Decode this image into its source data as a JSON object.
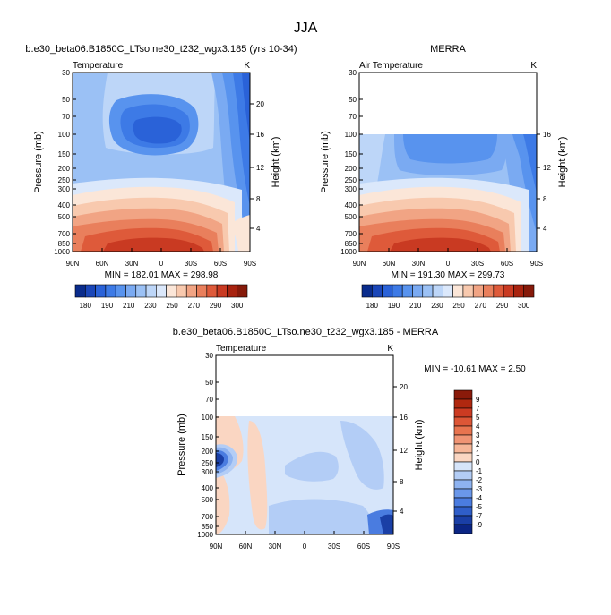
{
  "page_title": "JJA",
  "chart_data": [
    {
      "id": "model",
      "type": "contour",
      "title": "b.e30_beta06.B1850C_LTso.ne30_t232_wgx3.185 (yrs 10-34)",
      "field_label": "Temperature",
      "units": "K",
      "xlabel": "",
      "ylabel": "Pressure (mb)",
      "y2label": "Height (km)",
      "x_ticks": [
        "90N",
        "60N",
        "30N",
        "0",
        "30S",
        "60S",
        "90S"
      ],
      "y_ticks": [
        "30",
        "50",
        "70",
        "100",
        "150",
        "200",
        "250",
        "300",
        "400",
        "500",
        "700",
        "850",
        "1000"
      ],
      "y2_ticks": [
        "20",
        "16",
        "12",
        "8",
        "4"
      ],
      "min_max": "MIN = 182.01   MAX = 298.98",
      "pressure_range_mb": [
        30,
        1000
      ]
    },
    {
      "id": "obs",
      "type": "contour",
      "title": "MERRA",
      "field_label": "Air Temperature",
      "units": "K",
      "xlabel": "",
      "ylabel": "Pressure (mb)",
      "y2label": "Height (km)",
      "x_ticks": [
        "90N",
        "60N",
        "30N",
        "0",
        "30S",
        "60S",
        "90S"
      ],
      "y_ticks": [
        "30",
        "50",
        "70",
        "100",
        "150",
        "200",
        "250",
        "300",
        "400",
        "500",
        "700",
        "850",
        "1000"
      ],
      "y2_ticks": [
        "16",
        "12",
        "8",
        "4"
      ],
      "min_max": "MIN = 191.30   MAX = 299.73",
      "pressure_range_mb": [
        100,
        1000
      ]
    },
    {
      "id": "diff",
      "type": "contour",
      "title": "b.e30_beta06.B1850C_LTso.ne30_t232_wgx3.185 - MERRA",
      "field_label": "Temperature",
      "units": "K",
      "xlabel": "",
      "ylabel": "Pressure (mb)",
      "y2label": "Height (km)",
      "x_ticks": [
        "90N",
        "60N",
        "30N",
        "0",
        "30S",
        "60S",
        "90S"
      ],
      "y_ticks": [
        "30",
        "50",
        "70",
        "100",
        "150",
        "200",
        "250",
        "300",
        "400",
        "500",
        "700",
        "850",
        "1000"
      ],
      "y2_ticks": [
        "20",
        "16",
        "12",
        "8",
        "4"
      ],
      "min_max": "MIN = -10.61   MAX =   2.50",
      "pressure_range_mb": [
        100,
        1000
      ]
    }
  ],
  "colorbar_temperature": {
    "labels": [
      "180",
      "190",
      "210",
      "230",
      "250",
      "270",
      "290",
      "300"
    ],
    "colors": [
      "#0a2c8c",
      "#1a46b8",
      "#2a62d8",
      "#3d7ae6",
      "#5893ee",
      "#7aaaf2",
      "#9bc1f5",
      "#bdd6f8",
      "#dbe8fb",
      "#fbe6d8",
      "#f8c9ae",
      "#f1a484",
      "#e97f5c",
      "#de5a3a",
      "#c93a22",
      "#a8230f",
      "#861a0a"
    ]
  },
  "colorbar_difference": {
    "labels": [
      "9",
      "7",
      "5",
      "4",
      "3",
      "2",
      "1",
      "0",
      "-1",
      "-2",
      "-3",
      "-4",
      "-5",
      "-7",
      "-9"
    ],
    "colors": [
      "#8a1a0a",
      "#b0280f",
      "#cc3b22",
      "#dd5636",
      "#e8744f",
      "#f09474",
      "#f6b698",
      "#fad6c2",
      "#d6e5fa",
      "#b3cdf6",
      "#8eb3f1",
      "#6a97ea",
      "#4a7ce0",
      "#2f5ec9",
      "#1a3fa6",
      "#0b2584"
    ]
  }
}
